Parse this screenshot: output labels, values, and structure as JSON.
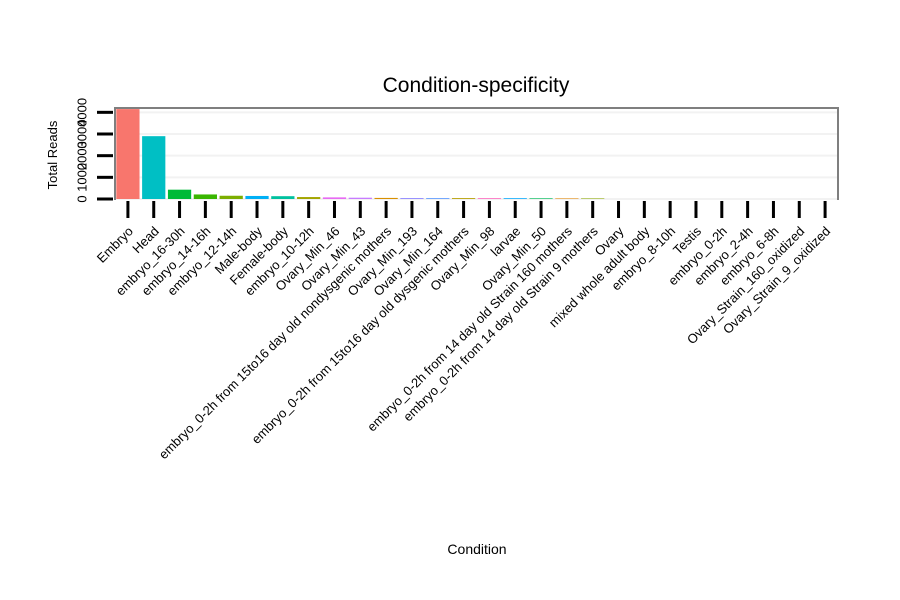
{
  "chart_data": {
    "type": "bar",
    "title": "Condition-specificity",
    "xlabel": "Condition",
    "ylabel": "Total Reads",
    "ylim": [
      0,
      4200
    ],
    "ytick_labels": [
      "0",
      "1000",
      "2000",
      "3000",
      "4000"
    ],
    "ytick_values": [
      0,
      1000,
      2000,
      3000,
      4000
    ],
    "categories": [
      "Embryo",
      "Head",
      "embryo_16-30h",
      "embryo_14-16h",
      "embryo_12-14h",
      "Male-body",
      "Female-body",
      "embryo_10-12h",
      "Ovary_Min_46",
      "Ovary_Min_43",
      "embryo_0-2h from 15to16 day old nondysgenic mothers",
      "Ovary_Min_193",
      "Ovary_Min_164",
      "embryo_0-2h from 15to16 day old dysgenic mothers",
      "Ovary_Min_98",
      "larvae",
      "Ovary_Min_50",
      "embryo_0-2h from 14 day old Strain 160 mothers",
      "embryo_0-2h from 14 day old Strain 9 mothers",
      "Ovary",
      "mixed whole adult body",
      "embryo_8-10h",
      "Testis",
      "embryo_0-2h",
      "embryo_2-4h",
      "embryo_6-8h",
      "Ovary_Strain_160_oxidized",
      "Ovary_Strain_9_oxidized"
    ],
    "values": [
      4150,
      2900,
      430,
      210,
      150,
      140,
      130,
      90,
      75,
      60,
      50,
      45,
      40,
      40,
      35,
      35,
      30,
      25,
      25,
      0,
      0,
      0,
      0,
      0,
      0,
      0,
      0,
      0
    ],
    "colors": [
      "#F8766D",
      "#00BFC4",
      "#00BA38",
      "#39B600",
      "#7CAE00",
      "#00B0F6",
      "#00C19F",
      "#A3A500",
      "#E76BF3",
      "#C77CFF",
      "#D89000",
      "#9590FF",
      "#619CFF",
      "#B79F00",
      "#FF62BC",
      "#00A9FF",
      "#00BD5C",
      "#E58700",
      "#8EAB00",
      "#00BFC4",
      "#F8766D",
      "#00BA38",
      "#619CFF",
      "#FF61C3",
      "#00B8E7",
      "#35A2FF",
      "#DB72FB",
      "#FF6C91"
    ],
    "panel_border_color": "#7f7f7f",
    "grid_color": "#f2f2f2",
    "legend": "none"
  }
}
